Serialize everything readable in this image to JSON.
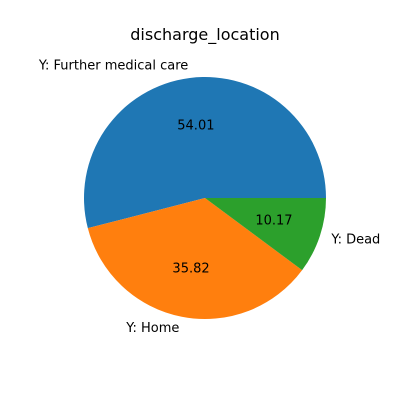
{
  "chart_data": {
    "type": "pie",
    "title": "discharge_location",
    "slices": [
      {
        "label": "Y: Further medical care",
        "value": 54.01,
        "pct_label": "54.01",
        "color": "#1f77b4"
      },
      {
        "label": "Y: Home",
        "value": 35.82,
        "pct_label": "35.82",
        "color": "#ff7f0e"
      },
      {
        "label": "Y: Dead",
        "value": 10.17,
        "pct_label": "10.17",
        "color": "#2ca02c"
      }
    ],
    "start_angle_deg": 0,
    "direction": "counterclockwise"
  }
}
